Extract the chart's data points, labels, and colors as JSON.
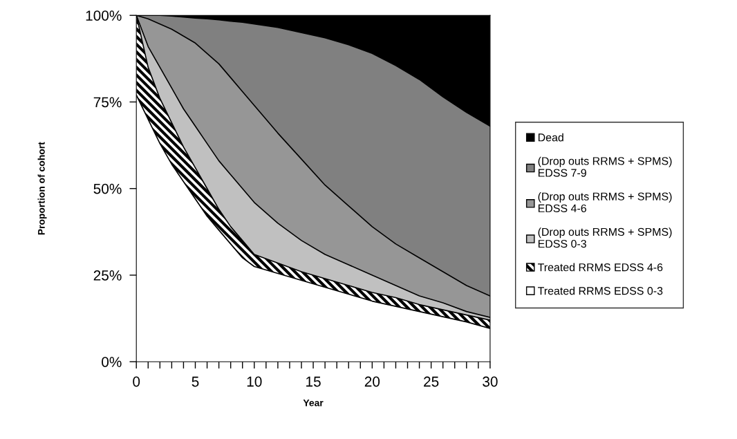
{
  "chart_data": {
    "type": "area",
    "stacked": true,
    "xlabel": "Year",
    "ylabel": "Proportion of cohort",
    "x": [
      0,
      1,
      2,
      3,
      4,
      5,
      6,
      7,
      8,
      9,
      10,
      12,
      14,
      16,
      18,
      20,
      22,
      24,
      26,
      28,
      30
    ],
    "series": [
      {
        "name": "Treated RRMS EDSS 0-3",
        "color": "#ffffff",
        "values": [
          77,
          70,
          63,
          57,
          52,
          47,
          42,
          38,
          34,
          30,
          27.5,
          25.5,
          23.5,
          21.5,
          19.5,
          17.5,
          16,
          14.5,
          13,
          11.5,
          9.6
        ]
      },
      {
        "name": "Treated RRMS EDSS 4-6",
        "color": "#000000",
        "values": [
          23,
          15,
          13,
          12,
          10,
          9,
          8,
          6,
          5,
          5,
          3.5,
          3,
          2.5,
          2.5,
          2.5,
          2.5,
          2.5,
          2,
          2,
          2,
          2.4
        ]
      },
      {
        "name": "(Drop outs RRMS + SPMS)\nEDSS 0-3",
        "color": "#c0c0c0",
        "values": [
          0,
          6,
          9,
          10,
          11,
          12,
          13,
          14,
          15,
          15,
          15,
          11.5,
          9,
          7,
          6,
          5,
          3.5,
          2.5,
          2,
          1,
          0.8
        ]
      },
      {
        "name": "(Drop outs RRMS + SPMS)\nEDSS 4-6",
        "color": "#969696",
        "values": [
          0,
          8,
          12.5,
          17,
          21,
          24,
          26,
          28,
          28,
          28,
          28,
          26,
          23.5,
          20,
          17,
          14,
          12,
          11,
          9,
          7.5,
          6.2
        ]
      },
      {
        "name": "(Drop outs RRMS + SPMS)\nEDSS 7-9",
        "color": "#808080",
        "values": [
          0,
          1,
          2.5,
          3.8,
          5.5,
          7.2,
          10,
          12.7,
          16.3,
          20,
          23.5,
          30.5,
          36.5,
          42.5,
          46.5,
          50,
          51.5,
          51.5,
          50.5,
          50,
          49
        ]
      },
      {
        "name": "Dead",
        "color": "#000000",
        "values": [
          0,
          0,
          0,
          0.2,
          0.5,
          0.8,
          1,
          1.3,
          1.7,
          2,
          2.5,
          3.5,
          5,
          6.5,
          8.5,
          11,
          14.5,
          18.5,
          23.5,
          28,
          32
        ]
      }
    ],
    "xlim": [
      0,
      30
    ],
    "xticks": [
      0,
      {
        "value": 1,
        "label": null
      },
      {
        "value": 2,
        "label": null
      },
      {
        "value": 3,
        "label": null
      },
      {
        "value": 4,
        "label": null
      },
      5,
      {
        "value": 6,
        "label": null
      },
      {
        "value": 7,
        "label": null
      },
      {
        "value": 8,
        "label": null
      },
      {
        "value": 9,
        "label": null
      },
      10,
      {
        "value": 11,
        "label": null
      },
      {
        "value": 12,
        "label": null
      },
      {
        "value": 13,
        "label": null
      },
      {
        "value": 14,
        "label": null
      },
      15,
      {
        "value": 16,
        "label": null
      },
      {
        "value": 17,
        "label": null
      },
      {
        "value": 18,
        "label": null
      },
      {
        "value": 19,
        "label": null
      },
      20,
      {
        "value": 21,
        "label": null
      },
      {
        "value": 22,
        "label": null
      },
      {
        "value": 23,
        "label": null
      },
      {
        "value": 24,
        "label": null
      },
      25,
      {
        "value": 26,
        "label": null
      },
      {
        "value": 27,
        "label": null
      },
      {
        "value": 28,
        "label": null
      },
      {
        "value": 29,
        "label": null
      },
      30
    ],
    "ylim": [
      0,
      100
    ],
    "yticks": [
      {
        "value": 0,
        "label": "0%"
      },
      {
        "value": 25,
        "label": "25%"
      },
      {
        "value": 50,
        "label": "50%"
      },
      {
        "value": 75,
        "label": "75%"
      },
      {
        "value": 100,
        "label": "100%"
      }
    ],
    "grid": false,
    "legend": "right"
  }
}
